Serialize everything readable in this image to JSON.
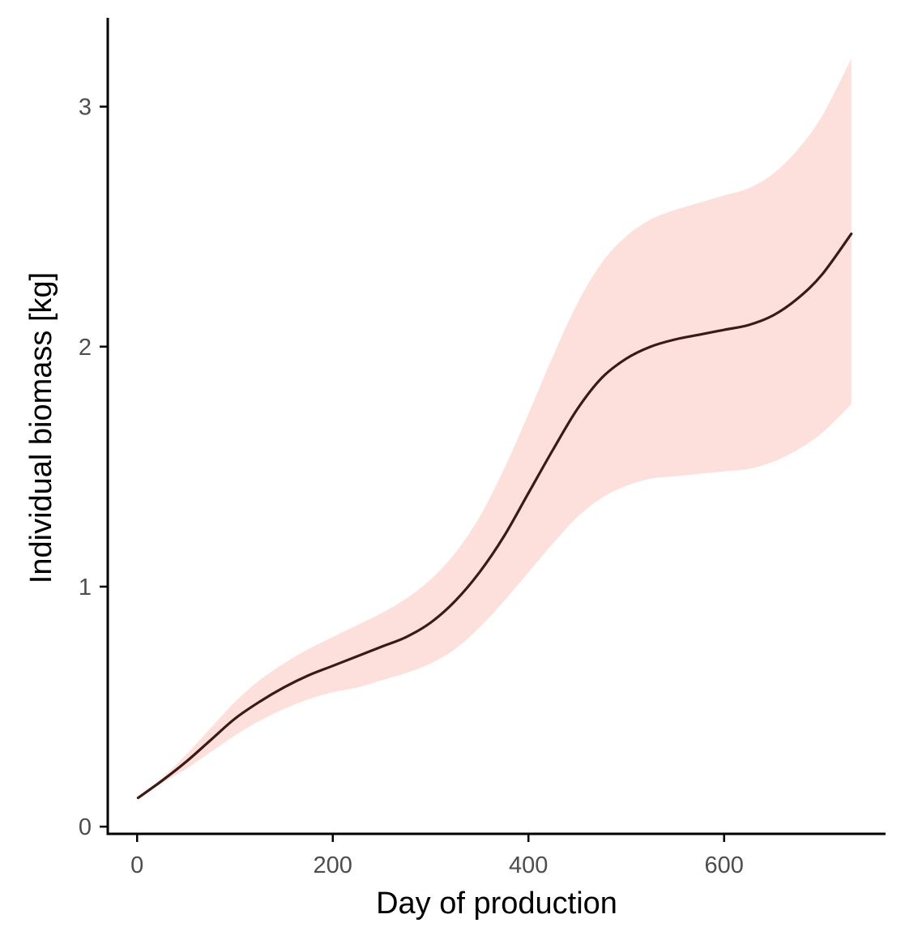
{
  "chart_data": {
    "type": "line",
    "xlabel": "Day of production",
    "ylabel": "Individual biomass [kg]",
    "xlim": [
      -30,
      765
    ],
    "ylim": [
      -0.03,
      3.37
    ],
    "x_ticks": [
      0,
      200,
      400,
      600
    ],
    "y_ticks": [
      0,
      1,
      2,
      3
    ],
    "grid": false,
    "legend": "none",
    "colors": {
      "line": "#3b1a16",
      "band": "#fde0dc",
      "axis": "#000000",
      "tick_text": "#4d4d4d"
    },
    "series": [
      {
        "x": [
          1,
          25,
          50,
          75,
          100,
          125,
          150,
          175,
          200,
          225,
          250,
          275,
          300,
          325,
          350,
          375,
          400,
          425,
          450,
          475,
          500,
          525,
          550,
          575,
          600,
          625,
          650,
          675,
          700,
          730
        ],
        "y": [
          0.12,
          0.19,
          0.27,
          0.36,
          0.45,
          0.52,
          0.58,
          0.63,
          0.67,
          0.71,
          0.75,
          0.79,
          0.85,
          0.94,
          1.06,
          1.21,
          1.39,
          1.57,
          1.74,
          1.87,
          1.95,
          2.0,
          2.03,
          2.05,
          2.07,
          2.09,
          2.13,
          2.2,
          2.3,
          2.47
        ],
        "lower": [
          0.12,
          0.18,
          0.24,
          0.31,
          0.38,
          0.44,
          0.49,
          0.53,
          0.56,
          0.58,
          0.61,
          0.64,
          0.68,
          0.74,
          0.83,
          0.94,
          1.06,
          1.18,
          1.29,
          1.37,
          1.42,
          1.45,
          1.46,
          1.47,
          1.48,
          1.49,
          1.52,
          1.57,
          1.64,
          1.76
        ],
        "upper": [
          0.12,
          0.2,
          0.3,
          0.41,
          0.52,
          0.61,
          0.68,
          0.74,
          0.79,
          0.84,
          0.89,
          0.95,
          1.03,
          1.14,
          1.29,
          1.49,
          1.72,
          1.96,
          2.18,
          2.35,
          2.46,
          2.53,
          2.57,
          2.6,
          2.63,
          2.66,
          2.72,
          2.82,
          2.96,
          3.2
        ]
      }
    ]
  }
}
